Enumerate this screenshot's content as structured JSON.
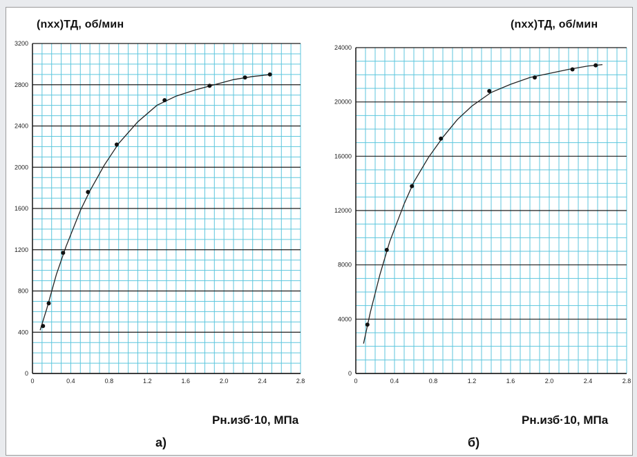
{
  "charts": [
    {
      "ylabel": "(nxx)ТД, об/мин",
      "xlabel": "Pн.изб·10, МПа",
      "panel_label": "а)"
    },
    {
      "ylabel": "(nxx)ТД, об/мин",
      "xlabel": "Pн.изб·10, МПа",
      "panel_label": "б)"
    }
  ],
  "colors": {
    "grid_minor": "#5cc6dd",
    "grid_major": "#1a1a1a",
    "curve": "#222222",
    "point": "#111111"
  },
  "chart_data": [
    {
      "type": "scatter",
      "title": "",
      "xlabel": "Pн.изб·10, МПа",
      "ylabel": "(nxx)ТД, об/мин",
      "xlim": [
        0,
        2.8
      ],
      "ylim": [
        0,
        3200
      ],
      "x_ticks": [
        "0",
        "0.4",
        "0.8",
        "1.2",
        "1.6",
        "2.0",
        "2.4",
        "2.8"
      ],
      "y_ticks": [
        "0",
        "400",
        "800",
        "1200",
        "1600",
        "2000",
        "2400",
        "2800",
        "3200"
      ],
      "grid": true,
      "points": [
        {
          "x": 0.11,
          "y": 460
        },
        {
          "x": 0.17,
          "y": 680
        },
        {
          "x": 0.32,
          "y": 1170
        },
        {
          "x": 0.58,
          "y": 1760
        },
        {
          "x": 0.88,
          "y": 2220
        },
        {
          "x": 1.38,
          "y": 2650
        },
        {
          "x": 1.85,
          "y": 2790
        },
        {
          "x": 2.22,
          "y": 2870
        },
        {
          "x": 2.48,
          "y": 2900
        }
      ],
      "curve": [
        {
          "x": 0.08,
          "y": 420
        },
        {
          "x": 0.15,
          "y": 630
        },
        {
          "x": 0.25,
          "y": 960
        },
        {
          "x": 0.35,
          "y": 1230
        },
        {
          "x": 0.5,
          "y": 1580
        },
        {
          "x": 0.6,
          "y": 1770
        },
        {
          "x": 0.75,
          "y": 2020
        },
        {
          "x": 0.9,
          "y": 2230
        },
        {
          "x": 1.1,
          "y": 2440
        },
        {
          "x": 1.3,
          "y": 2600
        },
        {
          "x": 1.5,
          "y": 2690
        },
        {
          "x": 1.7,
          "y": 2750
        },
        {
          "x": 1.9,
          "y": 2800
        },
        {
          "x": 2.1,
          "y": 2850
        },
        {
          "x": 2.3,
          "y": 2880
        },
        {
          "x": 2.5,
          "y": 2900
        }
      ]
    },
    {
      "type": "scatter",
      "title": "",
      "xlabel": "Pн.изб·10, МПа",
      "ylabel": "(nxx)ТД, об/мин",
      "xlim": [
        0,
        2.8
      ],
      "ylim": [
        0,
        24000
      ],
      "x_ticks": [
        "0",
        "0.4",
        "0.8",
        "1.2",
        "1.6",
        "2.0",
        "2.4",
        "2.8"
      ],
      "y_ticks": [
        "0",
        "4000",
        "8000",
        "12000",
        "16000",
        "20000",
        "24000"
      ],
      "grid": true,
      "points": [
        {
          "x": 0.12,
          "y": 3600
        },
        {
          "x": 0.32,
          "y": 9100
        },
        {
          "x": 0.58,
          "y": 13800
        },
        {
          "x": 0.88,
          "y": 17300
        },
        {
          "x": 1.38,
          "y": 20800
        },
        {
          "x": 1.85,
          "y": 21800
        },
        {
          "x": 2.24,
          "y": 22400
        },
        {
          "x": 2.48,
          "y": 22700
        }
      ],
      "curve": [
        {
          "x": 0.08,
          "y": 2200
        },
        {
          "x": 0.15,
          "y": 4500
        },
        {
          "x": 0.25,
          "y": 7300
        },
        {
          "x": 0.35,
          "y": 9700
        },
        {
          "x": 0.5,
          "y": 12500
        },
        {
          "x": 0.6,
          "y": 14100
        },
        {
          "x": 0.75,
          "y": 15900
        },
        {
          "x": 0.9,
          "y": 17400
        },
        {
          "x": 1.05,
          "y": 18700
        },
        {
          "x": 1.2,
          "y": 19700
        },
        {
          "x": 1.4,
          "y": 20700
        },
        {
          "x": 1.6,
          "y": 21300
        },
        {
          "x": 1.8,
          "y": 21800
        },
        {
          "x": 2.0,
          "y": 22100
        },
        {
          "x": 2.2,
          "y": 22400
        },
        {
          "x": 2.4,
          "y": 22650
        },
        {
          "x": 2.55,
          "y": 22750
        }
      ]
    }
  ]
}
